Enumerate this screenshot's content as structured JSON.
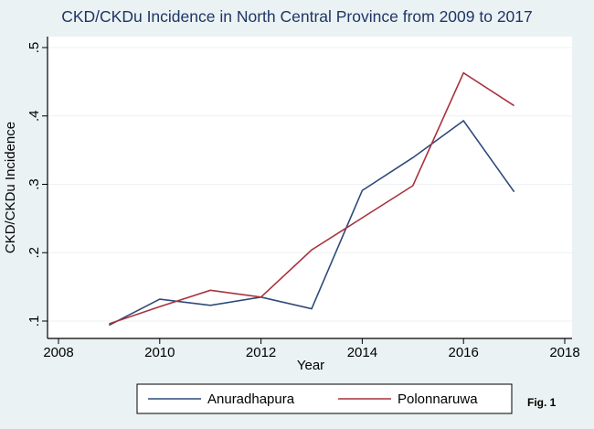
{
  "chart_data": {
    "type": "line",
    "title": "CKD/CKDu Incidence in North Central Province from 2009 to 2017",
    "xlabel": "Year",
    "ylabel": "CKD/CKDu Incidence",
    "x": [
      2009,
      2010,
      2011,
      2012,
      2013,
      2014,
      2015,
      2016,
      2017
    ],
    "xlim": [
      2008,
      2018
    ],
    "ylim": [
      0.1,
      0.5
    ],
    "xticks": [
      2008,
      2010,
      2012,
      2014,
      2016,
      2018
    ],
    "yticks": [
      0.1,
      0.2,
      0.3,
      0.4,
      0.5
    ],
    "ytick_labels": [
      ".1",
      ".2",
      ".3",
      ".4",
      ".5"
    ],
    "grid": true,
    "legend_position": "bottom",
    "series": [
      {
        "name": "Anuradhapura",
        "color": "#2e4a7a",
        "values": [
          0.094,
          0.132,
          0.123,
          0.135,
          0.118,
          0.291,
          0.339,
          0.393,
          0.289
        ]
      },
      {
        "name": "Polonnaruwa",
        "color": "#a8323e",
        "values": [
          0.096,
          0.121,
          0.145,
          0.135,
          0.204,
          0.251,
          0.298,
          0.463,
          0.415
        ]
      }
    ],
    "annotation": "Fig. 1"
  },
  "colors": {
    "background": "#eaf2f3",
    "title": "#1f3566",
    "plot_bg": "#ffffff"
  }
}
